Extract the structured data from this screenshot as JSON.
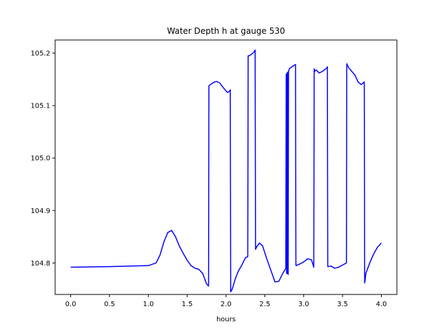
{
  "chart_data": {
    "type": "line",
    "title": "Water Depth h at gauge 530",
    "xlabel": "hours",
    "ylabel": "",
    "xlim": [
      -0.2,
      4.2
    ],
    "ylim": [
      104.74,
      105.225
    ],
    "xticks": [
      0.0,
      0.5,
      1.0,
      1.5,
      2.0,
      2.5,
      3.0,
      3.5,
      4.0
    ],
    "xtick_labels": [
      "0.0",
      "0.5",
      "1.0",
      "1.5",
      "2.0",
      "2.5",
      "3.0",
      "3.5",
      "4.0"
    ],
    "yticks": [
      104.8,
      104.9,
      105.0,
      105.1,
      105.2
    ],
    "ytick_labels": [
      "104.8",
      "104.9",
      "105.0",
      "105.1",
      "105.2"
    ],
    "grid": false,
    "series": [
      {
        "color": "#0000ff",
        "x": [
          0.0,
          0.5,
          1.0,
          1.1,
          1.15,
          1.2,
          1.25,
          1.3,
          1.35,
          1.4,
          1.45,
          1.5,
          1.55,
          1.6,
          1.65,
          1.7,
          1.75,
          1.775,
          1.78,
          1.82,
          1.85,
          1.88,
          1.92,
          1.96,
          2.0,
          2.02,
          2.05,
          2.055,
          2.06,
          2.08,
          2.12,
          2.16,
          2.2,
          2.25,
          2.28,
          2.285,
          2.3,
          2.33,
          2.36,
          2.375,
          2.38,
          2.4,
          2.43,
          2.47,
          2.52,
          2.58,
          2.63,
          2.68,
          2.73,
          2.77,
          2.775,
          2.78,
          2.785,
          2.79,
          2.795,
          2.8,
          2.805,
          2.81,
          2.815,
          2.83,
          2.86,
          2.89,
          2.895,
          2.9,
          2.95,
          3.0,
          3.05,
          3.1,
          3.13,
          3.135,
          3.14,
          3.16,
          3.2,
          3.25,
          3.3,
          3.305,
          3.31,
          3.35,
          3.4,
          3.45,
          3.5,
          3.55,
          3.555,
          3.56,
          3.58,
          3.62,
          3.66,
          3.7,
          3.74,
          3.78,
          3.785,
          3.79,
          3.8,
          3.85,
          3.9,
          3.95,
          4.0
        ],
        "y": [
          104.792,
          104.793,
          104.795,
          104.8,
          104.815,
          104.84,
          104.858,
          104.862,
          104.85,
          104.832,
          104.818,
          104.805,
          104.795,
          104.79,
          104.788,
          104.78,
          104.76,
          104.756,
          105.138,
          105.142,
          105.145,
          105.146,
          105.143,
          105.135,
          105.128,
          105.125,
          105.128,
          105.13,
          104.745,
          104.75,
          104.77,
          104.785,
          104.795,
          104.81,
          104.812,
          105.195,
          105.195,
          105.198,
          105.202,
          105.206,
          104.826,
          104.832,
          104.838,
          104.833,
          104.81,
          104.785,
          104.764,
          104.765,
          104.78,
          104.79,
          105.16,
          104.78,
          105.162,
          104.78,
          105.164,
          104.778,
          105.165,
          105.168,
          105.17,
          105.172,
          105.175,
          105.178,
          105.178,
          104.795,
          104.798,
          104.802,
          104.808,
          104.806,
          104.792,
          105.17,
          105.165,
          105.168,
          105.162,
          105.166,
          105.172,
          105.174,
          104.793,
          104.794,
          104.79,
          104.792,
          104.796,
          104.8,
          105.18,
          105.178,
          105.172,
          105.165,
          105.158,
          105.145,
          105.14,
          105.145,
          104.762,
          104.766,
          104.78,
          104.8,
          104.817,
          104.83,
          104.838
        ]
      }
    ]
  }
}
